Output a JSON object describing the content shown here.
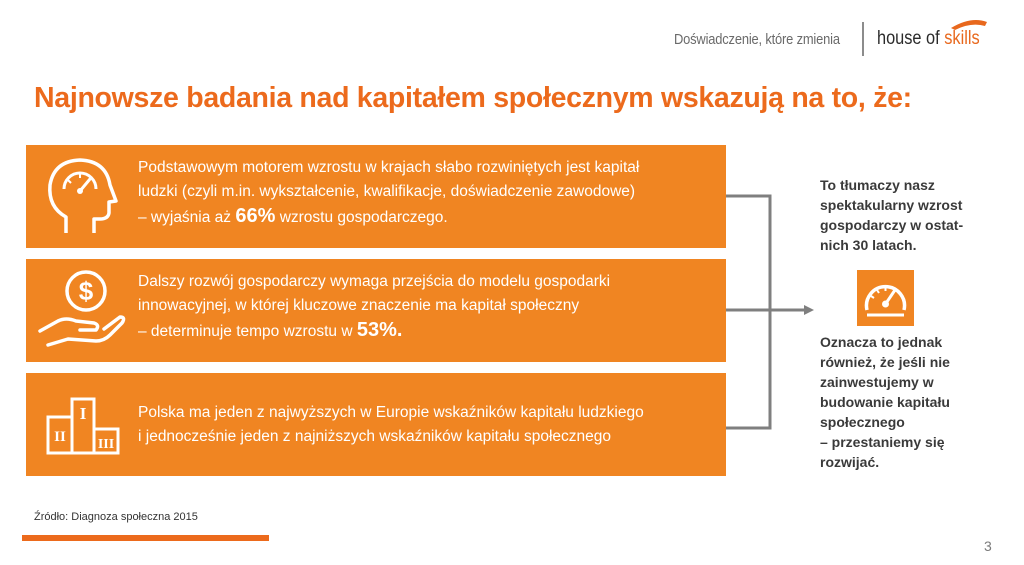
{
  "header": {
    "tagline": "Doświadczenie, które zmienia",
    "logo_text_part1": "house of ",
    "logo_text_part2": "skills"
  },
  "title": "Najnowsze badania nad kapitałem społecznym wskazują na to, że:",
  "boxes": [
    {
      "icon": "head-gauge-icon",
      "line1": "Podstawowym motorem wzrostu w krajach słabo rozwiniętych jest kapitał",
      "line2": "ludzki (czyli m.in. wykształcenie, kwalifikacje, doświadczenie zawodowe)",
      "line3_before": "– wyjaśnia aż ",
      "highlight": "66%",
      "line3_after": " wzrostu gospodarczego."
    },
    {
      "icon": "hand-dollar-coin-icon",
      "line1": "Dalszy rozwój gospodarczy wymaga przejścia do modelu gospodarki",
      "line2": "innowacyjnej, w której kluczowe znaczenie ma kapitał społeczny",
      "line3_before": "– determinuje tempo wzrostu w ",
      "highlight": "53%."
    },
    {
      "icon": "podium-icon",
      "line1": "Polska ma jeden z najwyższych w Europie wskaźników kapitału ludzkiego",
      "line2": "i jednocześnie jeden z najniższych wskaźników kapitału społecznego"
    }
  ],
  "right_top": [
    "To tłumaczy nasz",
    "spektakularny wzrost",
    "gospodarczy w ostat-",
    "nich 30 latach."
  ],
  "right_icon": "speedometer-icon",
  "right_bottom": [
    "Oznacza to jednak",
    "również, że jeśli nie",
    "zainwestujemy w",
    "budowanie kapitału",
    "społecznego",
    "– przestaniemy się",
    "rozwijać."
  ],
  "source": "Źródło: Diagnoza społeczna 2015",
  "page_number": "3",
  "colors": {
    "accent": "#f08522",
    "title": "#ec6a1c",
    "connector": "#7f7f7f"
  }
}
